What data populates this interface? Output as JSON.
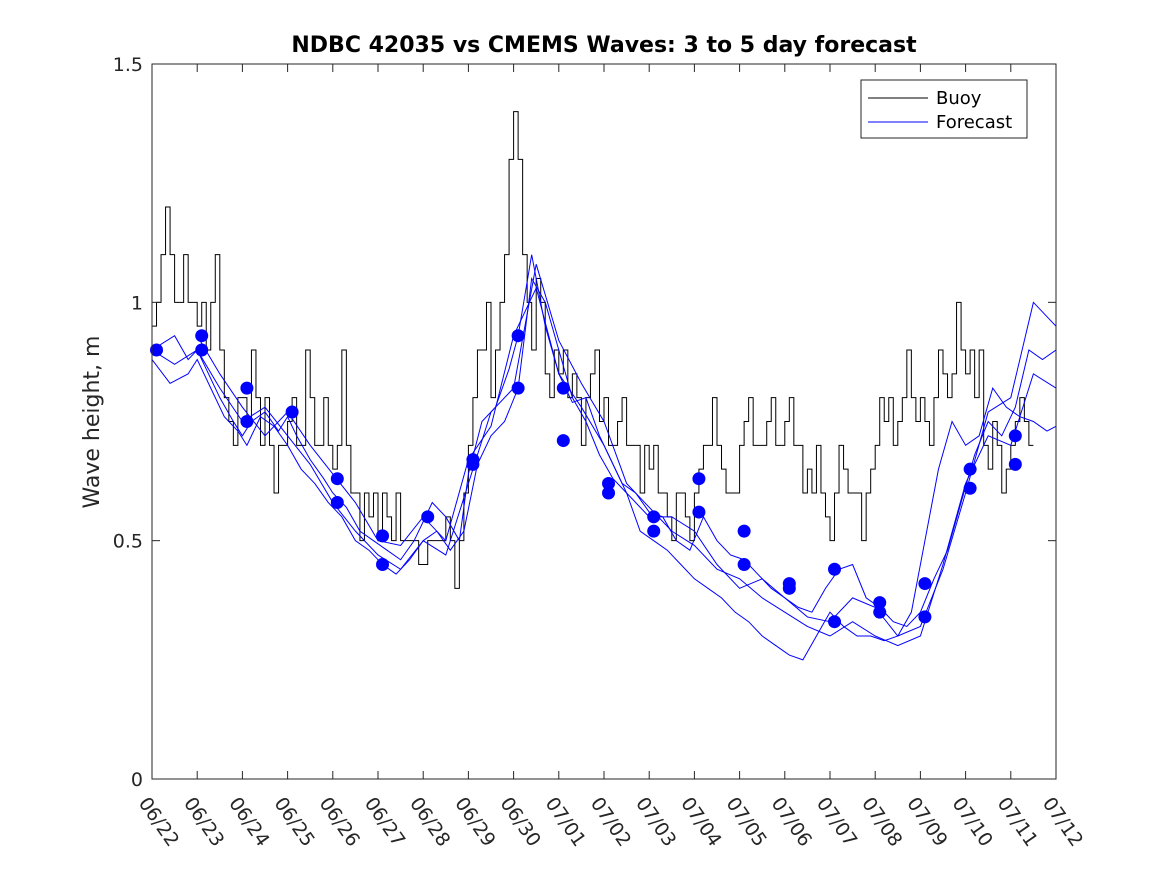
{
  "chart_data": {
    "type": "line",
    "title": "NDBC 42035 vs CMEMS Waves: 3 to 5 day forecast",
    "xlabel": "",
    "ylabel": "Wave height, m",
    "x_tick_labels": [
      "06/22",
      "06/23",
      "06/24",
      "06/25",
      "06/26",
      "06/27",
      "06/28",
      "06/29",
      "06/30",
      "07/01",
      "07/02",
      "07/03",
      "07/04",
      "07/05",
      "07/06",
      "07/07",
      "07/08",
      "07/09",
      "07/10",
      "07/11",
      "07/12"
    ],
    "y_ticks": [
      0,
      0.5,
      1,
      1.5
    ],
    "y_tick_labels": [
      "0",
      "0.5",
      "1",
      "1.5"
    ],
    "xlim": [
      0,
      20
    ],
    "ylim": [
      0,
      1.5
    ],
    "grid": false,
    "legend_position": "top-right",
    "legend": [
      "Buoy",
      "Forecast"
    ],
    "colors": {
      "buoy": "#000000",
      "forecast": "#0000ff"
    },
    "series": [
      {
        "name": "Buoy",
        "x_days_since_06_22": [
          0.0,
          0.1,
          0.2,
          0.3,
          0.4,
          0.5,
          0.6,
          0.7,
          0.8,
          0.9,
          1.0,
          1.1,
          1.2,
          1.3,
          1.4,
          1.5,
          1.6,
          1.7,
          1.8,
          1.9,
          2.0,
          2.1,
          2.2,
          2.3,
          2.4,
          2.5,
          2.6,
          2.7,
          2.8,
          2.9,
          3.0,
          3.1,
          3.2,
          3.3,
          3.4,
          3.5,
          3.6,
          3.7,
          3.8,
          3.9,
          4.0,
          4.1,
          4.2,
          4.3,
          4.4,
          4.5,
          4.6,
          4.7,
          4.8,
          4.9,
          5.0,
          5.1,
          5.2,
          5.3,
          5.4,
          5.5,
          5.6,
          5.7,
          5.8,
          5.9,
          6.0,
          6.1,
          6.2,
          6.3,
          6.4,
          6.5,
          6.6,
          6.7,
          6.8,
          6.9,
          7.0,
          7.1,
          7.2,
          7.3,
          7.4,
          7.5,
          7.6,
          7.7,
          7.8,
          7.9,
          8.0,
          8.1,
          8.2,
          8.3,
          8.4,
          8.5,
          8.6,
          8.7,
          8.8,
          8.9,
          9.0,
          9.1,
          9.2,
          9.3,
          9.4,
          9.5,
          9.6,
          9.7,
          9.8,
          9.9,
          10.0,
          10.1,
          10.2,
          10.3,
          10.4,
          10.5,
          10.6,
          10.7,
          10.8,
          10.9,
          11.0,
          11.1,
          11.2,
          11.3,
          11.4,
          11.5,
          11.6,
          11.7,
          11.8,
          11.9,
          12.0,
          12.1,
          12.2,
          12.3,
          12.4,
          12.5,
          12.6,
          12.7,
          12.8,
          12.9,
          13.0,
          13.1,
          13.2,
          13.3,
          13.4,
          13.5,
          13.6,
          13.7,
          13.8,
          13.9,
          14.0,
          14.1,
          14.2,
          14.3,
          14.4,
          14.5,
          14.6,
          14.7,
          14.8,
          14.9,
          15.0,
          15.1,
          15.2,
          15.3,
          15.4,
          15.5,
          15.6,
          15.7,
          15.8,
          15.9,
          16.0,
          16.1,
          16.2,
          16.3,
          16.4,
          16.5,
          16.6,
          16.7,
          16.8,
          16.9,
          17.0,
          17.1,
          17.2,
          17.3,
          17.4,
          17.5,
          17.6,
          17.7,
          17.8,
          17.9,
          18.0,
          18.1,
          18.2,
          18.3,
          18.4,
          18.5,
          18.6,
          18.7,
          18.8,
          18.9,
          19.0,
          19.1,
          19.2,
          19.3,
          19.4,
          19.5,
          19.6,
          19.7,
          19.8,
          19.9,
          20.0
        ],
        "values": [
          0.95,
          1.0,
          1.1,
          1.2,
          1.1,
          1.0,
          1.0,
          1.1,
          1.0,
          1.0,
          0.95,
          1.0,
          0.9,
          1.0,
          1.1,
          0.9,
          0.8,
          0.75,
          0.7,
          0.8,
          0.8,
          0.75,
          0.9,
          0.8,
          0.7,
          0.8,
          0.7,
          0.6,
          0.7,
          0.7,
          0.75,
          0.8,
          0.7,
          0.7,
          0.9,
          0.8,
          0.7,
          0.7,
          0.8,
          0.7,
          0.65,
          0.7,
          0.9,
          0.7,
          0.6,
          0.6,
          0.5,
          0.6,
          0.55,
          0.6,
          0.5,
          0.6,
          0.55,
          0.5,
          0.6,
          0.5,
          0.5,
          0.5,
          0.5,
          0.45,
          0.45,
          0.5,
          0.5,
          0.5,
          0.5,
          0.55,
          0.5,
          0.4,
          0.5,
          0.6,
          0.7,
          0.8,
          0.9,
          0.9,
          1.0,
          0.8,
          0.9,
          1.0,
          1.1,
          1.3,
          1.4,
          1.3,
          1.1,
          1.0,
          0.9,
          1.05,
          1.0,
          0.85,
          0.8,
          0.9,
          0.85,
          0.9,
          0.8,
          0.85,
          0.8,
          0.7,
          0.8,
          0.85,
          0.9,
          0.75,
          0.8,
          0.7,
          0.7,
          0.75,
          0.8,
          0.7,
          0.7,
          0.7,
          0.6,
          0.7,
          0.65,
          0.7,
          0.6,
          0.6,
          0.55,
          0.5,
          0.6,
          0.6,
          0.55,
          0.5,
          0.6,
          0.65,
          0.7,
          0.7,
          0.8,
          0.7,
          0.65,
          0.6,
          0.6,
          0.6,
          0.7,
          0.75,
          0.8,
          0.7,
          0.7,
          0.7,
          0.75,
          0.8,
          0.7,
          0.7,
          0.75,
          0.8,
          0.7,
          0.7,
          0.6,
          0.65,
          0.6,
          0.7,
          0.6,
          0.55,
          0.5,
          0.6,
          0.7,
          0.65,
          0.6,
          0.6,
          0.6,
          0.5,
          0.6,
          0.65,
          0.7,
          0.8,
          0.75,
          0.8,
          0.7,
          0.75,
          0.8,
          0.9,
          0.8,
          0.75,
          0.8,
          0.75,
          0.7,
          0.8,
          0.9,
          0.85,
          0.8,
          0.85,
          1.0,
          0.9,
          0.85,
          0.9,
          0.8,
          0.9,
          0.7,
          0.65,
          0.75,
          0.7,
          0.6,
          0.65,
          0.7,
          0.75,
          0.8,
          0.75,
          0.7
        ]
      },
      {
        "name": "Forecast",
        "lines": [
          {
            "x": [
              0.0,
              0.5,
              0.8,
              1.0,
              1.2,
              1.5,
              1.8,
              2.0,
              2.2,
              2.5,
              2.8,
              3.0,
              3.2,
              3.5,
              3.8,
              4.0,
              4.3,
              4.6,
              4.9,
              5.2,
              5.5,
              5.8,
              6.0,
              6.2,
              6.5,
              6.8,
              7.0,
              7.3,
              7.6,
              7.9,
              8.1,
              8.4,
              8.7,
              9.0,
              9.3,
              9.6,
              9.9,
              10.1,
              10.4,
              10.7,
              11.0,
              11.3,
              11.6,
              11.9,
              12.2,
              12.5,
              12.8,
              13.1,
              13.4,
              13.7,
              14.0,
              14.3,
              14.6,
              14.9,
              15.2,
              15.5,
              15.8,
              16.1,
              16.4,
              16.7,
              17.0,
              17.3,
              17.6,
              17.9,
              18.2,
              18.5,
              18.8,
              19.1,
              19.4,
              19.7,
              20.0
            ],
            "y": [
              0.9,
              0.93,
              0.88,
              0.9,
              0.86,
              0.8,
              0.75,
              0.72,
              0.75,
              0.77,
              0.73,
              0.76,
              0.72,
              0.67,
              0.63,
              0.6,
              0.57,
              0.52,
              0.5,
              0.48,
              0.46,
              0.5,
              0.54,
              0.58,
              0.55,
              0.5,
              0.64,
              0.75,
              0.78,
              0.86,
              0.93,
              1.1,
              0.95,
              0.85,
              0.79,
              0.8,
              0.72,
              0.68,
              0.62,
              0.6,
              0.56,
              0.55,
              0.5,
              0.48,
              0.55,
              0.5,
              0.47,
              0.46,
              0.43,
              0.4,
              0.38,
              0.36,
              0.35,
              0.4,
              0.44,
              0.45,
              0.38,
              0.36,
              0.33,
              0.32,
              0.35,
              0.42,
              0.48,
              0.58,
              0.68,
              0.75,
              0.72,
              0.78,
              0.9,
              0.88,
              0.9
            ]
          },
          {
            "x": [
              0.0,
              0.4,
              0.8,
              1.0,
              1.3,
              1.6,
              1.9,
              2.1,
              2.4,
              2.7,
              3.0,
              3.3,
              3.6,
              3.9,
              4.2,
              4.5,
              4.8,
              5.1,
              5.4,
              5.7,
              6.0,
              6.3,
              6.6,
              6.9,
              7.2,
              7.5,
              7.8,
              8.1,
              8.4,
              8.7,
              9.0,
              9.3,
              9.6,
              9.9,
              10.2,
              10.5,
              10.8,
              11.1,
              11.4,
              11.7,
              12.0,
              12.3,
              12.6,
              12.9,
              13.2,
              13.5,
              13.8,
              14.1,
              14.4,
              14.7,
              15.0,
              15.3,
              15.6,
              15.9,
              16.2,
              16.5,
              16.8,
              17.1,
              17.4,
              17.7,
              18.0,
              18.3,
              18.6,
              18.9,
              19.2,
              19.5,
              19.8,
              20.0
            ],
            "y": [
              0.88,
              0.83,
              0.85,
              0.88,
              0.82,
              0.76,
              0.73,
              0.7,
              0.76,
              0.74,
              0.7,
              0.65,
              0.62,
              0.58,
              0.55,
              0.5,
              0.48,
              0.45,
              0.43,
              0.46,
              0.5,
              0.52,
              0.48,
              0.52,
              0.66,
              0.72,
              0.75,
              0.82,
              1.05,
              1.0,
              0.9,
              0.8,
              0.75,
              0.68,
              0.63,
              0.6,
              0.52,
              0.5,
              0.48,
              0.45,
              0.42,
              0.4,
              0.38,
              0.35,
              0.33,
              0.3,
              0.28,
              0.26,
              0.25,
              0.3,
              0.35,
              0.32,
              0.3,
              0.3,
              0.29,
              0.3,
              0.35,
              0.5,
              0.65,
              0.75,
              0.7,
              0.72,
              0.82,
              0.78,
              0.76,
              0.75,
              0.73,
              0.74
            ]
          },
          {
            "x": [
              0.0,
              0.5,
              1.0,
              1.5,
              2.0,
              2.5,
              3.0,
              3.5,
              4.0,
              4.5,
              5.0,
              5.5,
              6.0,
              6.5,
              7.0,
              7.5,
              8.0,
              8.5,
              9.0,
              9.5,
              10.0,
              10.5,
              11.0,
              11.5,
              12.0,
              12.5,
              13.0,
              13.5,
              14.0,
              14.5,
              15.0,
              15.5,
              16.0,
              16.5,
              17.0,
              17.5,
              18.0,
              18.5,
              19.0,
              19.5,
              20.0
            ],
            "y": [
              0.9,
              0.87,
              0.9,
              0.82,
              0.75,
              0.78,
              0.72,
              0.66,
              0.58,
              0.52,
              0.47,
              0.44,
              0.5,
              0.47,
              0.62,
              0.77,
              0.82,
              1.08,
              0.92,
              0.83,
              0.75,
              0.62,
              0.57,
              0.52,
              0.49,
              0.44,
              0.42,
              0.38,
              0.35,
              0.32,
              0.3,
              0.33,
              0.3,
              0.28,
              0.3,
              0.45,
              0.62,
              0.72,
              0.7,
              0.85,
              0.82
            ]
          },
          {
            "x": [
              1.0,
              1.5,
              2.0,
              2.5,
              3.0,
              3.5,
              4.0,
              4.5,
              5.0,
              5.5,
              6.0,
              6.5,
              7.0,
              7.5,
              8.0,
              8.5,
              9.0,
              9.5,
              10.0,
              10.5,
              11.0,
              11.5,
              12.0,
              12.5,
              13.0,
              13.5,
              14.0,
              14.5,
              15.0,
              15.5,
              16.0,
              16.5,
              17.0,
              17.5,
              18.0,
              18.5,
              19.0,
              19.5,
              20.0
            ],
            "y": [
              0.93,
              0.85,
              0.78,
              0.72,
              0.77,
              0.7,
              0.64,
              0.58,
              0.5,
              0.49,
              0.55,
              0.5,
              0.67,
              0.74,
              0.93,
              1.03,
              0.85,
              0.78,
              0.7,
              0.6,
              0.55,
              0.55,
              0.52,
              0.45,
              0.4,
              0.42,
              0.38,
              0.34,
              0.33,
              0.38,
              0.36,
              0.3,
              0.32,
              0.44,
              0.6,
              0.77,
              0.8,
              1.0,
              0.95
            ]
          }
        ]
      },
      {
        "name": "Forecast markers",
        "x": [
          0.1,
          1.1,
          1.1,
          2.1,
          2.1,
          3.1,
          4.1,
          4.1,
          5.1,
          5.1,
          6.1,
          7.1,
          7.1,
          8.1,
          8.1,
          9.1,
          9.1,
          10.1,
          10.1,
          11.1,
          11.1,
          12.1,
          12.1,
          13.1,
          13.1,
          14.1,
          14.1,
          15.1,
          15.1,
          16.1,
          16.1,
          17.1,
          17.1,
          18.1,
          18.1,
          19.1,
          19.1
        ],
        "y": [
          0.9,
          0.93,
          0.9,
          0.82,
          0.75,
          0.77,
          0.63,
          0.58,
          0.51,
          0.45,
          0.55,
          0.67,
          0.66,
          0.93,
          0.82,
          0.82,
          0.71,
          0.62,
          0.6,
          0.55,
          0.52,
          0.63,
          0.56,
          0.52,
          0.45,
          0.41,
          0.4,
          0.44,
          0.33,
          0.37,
          0.35,
          0.41,
          0.34,
          0.65,
          0.61,
          0.72,
          0.66
        ]
      }
    ]
  }
}
